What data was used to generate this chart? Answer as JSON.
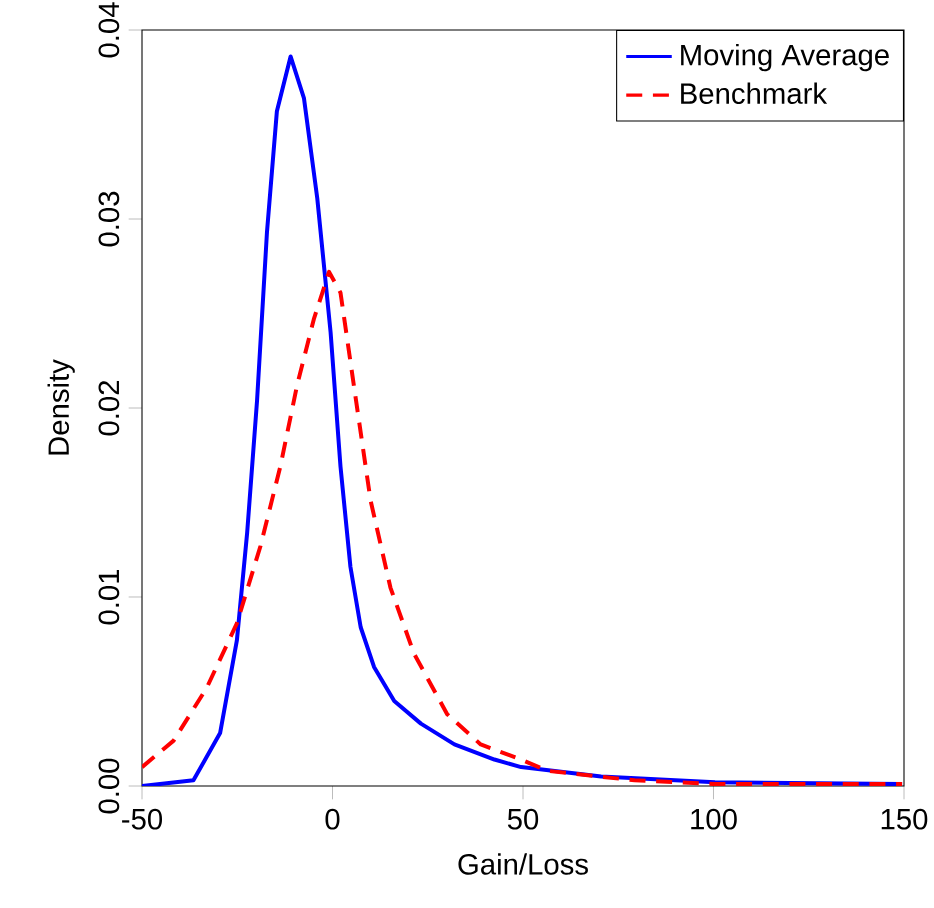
{
  "chart_data": {
    "type": "line",
    "xlabel": "Gain/Loss",
    "ylabel": "Density",
    "xlim": [
      -50,
      150
    ],
    "ylim": [
      0,
      0.04
    ],
    "xticks": [
      -50,
      0,
      50,
      100,
      150
    ],
    "yticks": [
      {
        "value": 0,
        "label": "0.00"
      },
      {
        "value": 0.01,
        "label": "0.01"
      },
      {
        "value": 0.02,
        "label": "0.02"
      },
      {
        "value": 0.03,
        "label": "0.03"
      },
      {
        "value": 0.04,
        "label": "0.04"
      }
    ],
    "legend": "top right",
    "grid": false,
    "marker": "none",
    "series": [
      {
        "name": "Moving Average",
        "color": "#0000ff",
        "line_style": "solid",
        "x": [
          -50,
          -36.5,
          -29.5,
          -25.1,
          -22.4,
          -19.8,
          -17.2,
          -14.6,
          -11,
          -7.5,
          -4,
          -0.5,
          2.1,
          4.7,
          7.4,
          10.9,
          16.2,
          23.2,
          32,
          42.5,
          49.5,
          70.5,
          100.4,
          149.5
        ],
        "values": [
          0,
          0.0003,
          0.0028,
          0.0077,
          0.0134,
          0.0204,
          0.0293,
          0.0357,
          0.0386,
          0.0364,
          0.0311,
          0.024,
          0.0169,
          0.0116,
          0.0084,
          0.0063,
          0.0045,
          0.0033,
          0.0022,
          0.0014,
          0.001,
          0.0005,
          0.0002,
          0.0001
        ]
      },
      {
        "name": "Benchmark",
        "color": "#ff0000",
        "line_style": "dashed",
        "x": [
          -50,
          -41.7,
          -33,
          -25.1,
          -18.9,
          -13.7,
          -9.3,
          -4.9,
          -0.9,
          2.1,
          5.6,
          10,
          15.2,
          21.4,
          30.1,
          38.9,
          49.5,
          56.5,
          79.3,
          100.4,
          149.5
        ],
        "values": [
          0.001,
          0.0024,
          0.0052,
          0.0086,
          0.0127,
          0.0169,
          0.0212,
          0.0247,
          0.0272,
          0.0261,
          0.0212,
          0.0151,
          0.0105,
          0.007,
          0.0038,
          0.0022,
          0.0014,
          0.0008,
          0.0003,
          0.0001,
          0.0001
        ]
      }
    ]
  }
}
